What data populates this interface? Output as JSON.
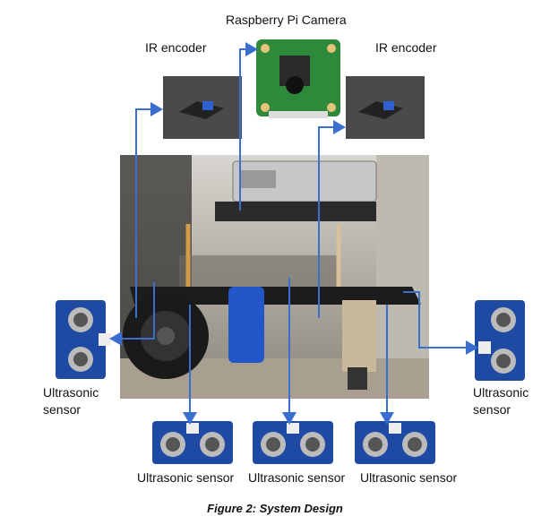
{
  "labels": {
    "camera": "Raspberry Pi Camera",
    "ir_left": "IR encoder",
    "ir_right": "IR encoder",
    "us_left_line1": "Ultrasonic",
    "us_left_line2": "sensor",
    "us_right_line1": "Ultrasonic",
    "us_right_line2": "sensor",
    "us_bottom_1": "Ultrasonic sensor",
    "us_bottom_2": "Ultrasonic sensor",
    "us_bottom_3": "Ultrasonic sensor"
  },
  "caption": "Figure 2: System Design",
  "colors": {
    "connector": "#3a6fd0",
    "sensor_board": "#1f4aa3",
    "pcb_green": "#2e8a3a"
  }
}
